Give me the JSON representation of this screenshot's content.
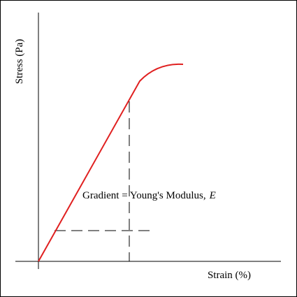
{
  "axes": {
    "y_label": "Stress (Pa)",
    "x_label": "Strain (%)"
  },
  "annotation": {
    "text": "Gradient = Young's Modulus,",
    "symbol": "E"
  }
}
